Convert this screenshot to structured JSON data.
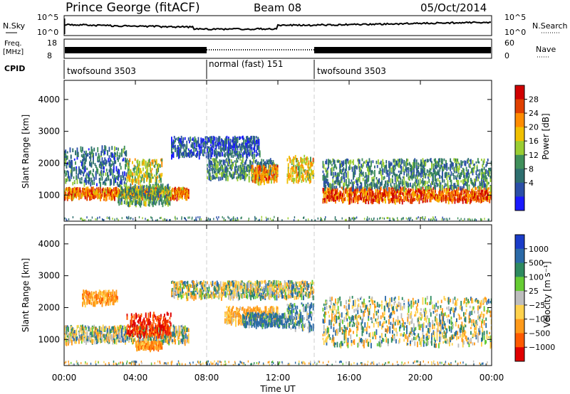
{
  "header": {
    "station": "Prince George (fitACF)",
    "beam": "Beam 08",
    "date": "05/Oct/2014"
  },
  "top_panels": {
    "nsky_label": "N.Sky",
    "nsky_ticks": [
      "10^5",
      "10^0"
    ],
    "nsearch_label": "N.Search",
    "nsearch_ticks": [
      "10^5",
      "10^0"
    ],
    "freq_label": [
      "Freq.",
      "[MHz]"
    ],
    "freq_ticks": [
      "18",
      "8"
    ],
    "nave_label": "Nave",
    "nave_ticks": [
      "60",
      "0"
    ],
    "cpid_label": "CPID",
    "cpid_segments": [
      "twofsound 3503",
      "normal (fast) 151",
      "twofsound 3503"
    ]
  },
  "axes": {
    "ylabel": "Slant Range [km]",
    "xlabel": "Time UT",
    "y_ticks": [
      "1000",
      "2000",
      "3000",
      "4000"
    ],
    "x_ticks": [
      "00:00",
      "04:00",
      "08:00",
      "12:00",
      "16:00",
      "20:00",
      "00:00"
    ]
  },
  "colorbars": {
    "power_label": "Power [dB]",
    "power_ticks": [
      "4",
      "8",
      "12",
      "16",
      "20",
      "24",
      "28"
    ],
    "velocity_label": "Velocity [m s⁻¹]",
    "velocity_ticks": [
      "1000",
      "500",
      "100",
      "25",
      "−25",
      "−100",
      "−500",
      "−1000"
    ]
  },
  "chart_data": [
    {
      "type": "heatmap",
      "panel": "power",
      "xlabel": "Time UT",
      "ylabel": "Slant Range [km]",
      "xlim_hours": [
        0,
        24
      ],
      "ylim_km": [
        180,
        4600
      ],
      "color_scale": {
        "label": "Power [dB]",
        "range": [
          0,
          30
        ],
        "colors": [
          "#1a1aff",
          "#2b4fa8",
          "#2e6f6f",
          "#3f8f5a",
          "#9acd32",
          "#f0c000",
          "#ff8c00",
          "#e04000",
          "#d00000"
        ]
      },
      "echo_regions": [
        {
          "t": [
            0.0,
            7.0
          ],
          "range_km": [
            900,
            1200
          ],
          "level_db": 22
        },
        {
          "t": [
            0.0,
            3.5
          ],
          "range_km": [
            1300,
            2500
          ],
          "level_db": 8
        },
        {
          "t": [
            3.0,
            6.0
          ],
          "range_km": [
            700,
            1300
          ],
          "level_db": 12
        },
        {
          "t": [
            3.5,
            5.5
          ],
          "range_km": [
            1400,
            2100
          ],
          "level_db": 16
        },
        {
          "t": [
            6.0,
            11.0
          ],
          "range_km": [
            2200,
            2800
          ],
          "level_db": 6
        },
        {
          "t": [
            8.0,
            12.0
          ],
          "range_km": [
            1500,
            2100
          ],
          "level_db": 10
        },
        {
          "t": [
            10.5,
            12.0
          ],
          "range_km": [
            1400,
            1900
          ],
          "level_db": 22
        },
        {
          "t": [
            12.5,
            14.0
          ],
          "range_km": [
            1400,
            2200
          ],
          "level_db": 18
        },
        {
          "t": [
            14.5,
            24.0
          ],
          "range_km": [
            800,
            1200
          ],
          "level_db": 24
        },
        {
          "t": [
            14.5,
            24.0
          ],
          "range_km": [
            1200,
            2100
          ],
          "level_db": 10
        }
      ],
      "frequency_mhz": [
        {
          "t": [
            0.0,
            8.0
          ],
          "value": 11
        },
        {
          "t": [
            8.0,
            14.0
          ],
          "value": 11
        },
        {
          "t": [
            14.0,
            24.0
          ],
          "value": 11
        }
      ],
      "cpid": [
        {
          "t": [
            0.0,
            8.0
          ],
          "name": "twofsound 3503"
        },
        {
          "t": [
            8.0,
            14.0
          ],
          "name": "normal (fast) 151"
        },
        {
          "t": [
            14.0,
            24.0
          ],
          "name": "twofsound 3503"
        }
      ]
    },
    {
      "type": "heatmap",
      "panel": "velocity",
      "xlabel": "Time UT",
      "ylabel": "Slant Range [km]",
      "xlim_hours": [
        0,
        24
      ],
      "ylim_km": [
        180,
        4600
      ],
      "color_scale": {
        "label": "Velocity [m s⁻¹]",
        "ticks": [
          1000,
          500,
          100,
          25,
          -25,
          -100,
          -500,
          -1000
        ],
        "colors": [
          "#1a3cc8",
          "#2b6aa8",
          "#2e8a60",
          "#66cc33",
          "#bdbdbd",
          "#ffd24d",
          "#ff9a1a",
          "#ff5a00",
          "#e00000"
        ]
      },
      "echo_regions": [
        {
          "t": [
            0.0,
            7.0
          ],
          "range_km": [
            900,
            1400
          ],
          "velocity_ms": 0
        },
        {
          "t": [
            1.0,
            3.0
          ],
          "range_km": [
            2100,
            2500
          ],
          "velocity_ms": -200
        },
        {
          "t": [
            3.5,
            6.0
          ],
          "range_km": [
            1100,
            1800
          ],
          "velocity_ms": -500
        },
        {
          "t": [
            4.0,
            5.5
          ],
          "range_km": [
            700,
            900
          ],
          "velocity_ms": -200
        },
        {
          "t": [
            6.0,
            14.0
          ],
          "range_km": [
            2300,
            2800
          ],
          "velocity_ms": 0
        },
        {
          "t": [
            9.0,
            12.0
          ],
          "range_km": [
            1500,
            2000
          ],
          "velocity_ms": -150
        },
        {
          "t": [
            10.0,
            12.5
          ],
          "range_km": [
            1400,
            1800
          ],
          "velocity_ms": 150
        },
        {
          "t": [
            12.5,
            14.0
          ],
          "range_km": [
            1300,
            2100
          ],
          "velocity_ms": 100
        },
        {
          "t": [
            14.5,
            24.0
          ],
          "range_km": [
            800,
            2300
          ],
          "velocity_ms": 0
        }
      ]
    }
  ]
}
